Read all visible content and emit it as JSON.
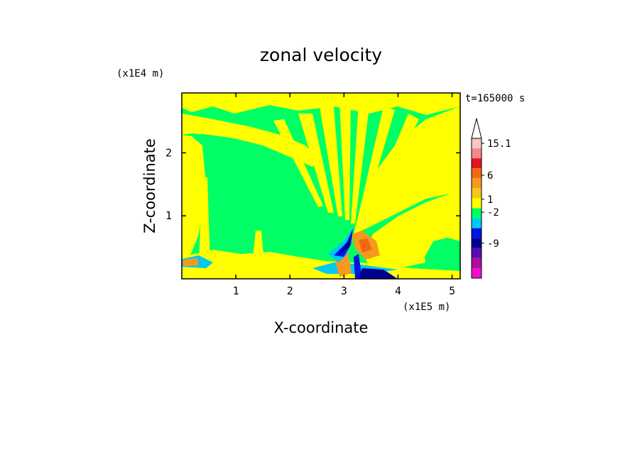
{
  "chart_data": {
    "type": "heatmap",
    "title": "zonal velocity",
    "time_label": "t=165000 s",
    "xlabel": "X-coordinate",
    "ylabel": "Z-coordinate",
    "x_unit_label": "(x1E5 m)",
    "y_unit_label": "(x1E4 m)",
    "xlim": [
      0,
      5.15
    ],
    "ylim": [
      0,
      2.95
    ],
    "x_ticks": [
      1,
      2,
      3,
      4,
      5
    ],
    "y_ticks": [
      1,
      2
    ],
    "background_level": "green (about 0 to -1)",
    "colorbar": {
      "labeled_values": [
        "15.1",
        "6",
        "1",
        "-2",
        "-9"
      ],
      "levels_top_to_bottom": [
        {
          "color": "#f7c8c8"
        },
        {
          "color": "#f08a8a"
        },
        {
          "color": "#e8141e"
        },
        {
          "color": "#f06a14"
        },
        {
          "color": "#f59a1e"
        },
        {
          "color": "#f5c81e"
        },
        {
          "color": "#ffff00"
        },
        {
          "color": "#00ff64"
        },
        {
          "color": "#00c8f0"
        },
        {
          "color": "#0014e6"
        },
        {
          "color": "#00008c"
        },
        {
          "color": "#5a0ab4"
        },
        {
          "color": "#b40aa0"
        },
        {
          "color": "#f010c8"
        }
      ]
    },
    "colors": {
      "yellow": "#ffff00",
      "green": "#00ff64",
      "orange": "#f59a1e",
      "red": "#f06a14",
      "cyan": "#00c8f0",
      "blue": "#0014e6",
      "navy": "#00008c"
    }
  }
}
